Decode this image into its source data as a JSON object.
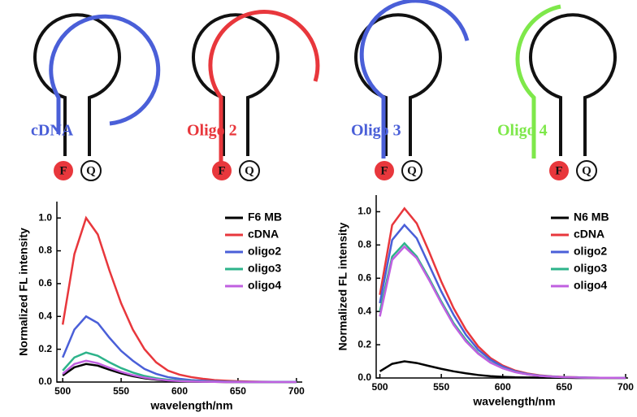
{
  "diagrams": {
    "probes": [
      {
        "label": "cDNA",
        "color": "#4a5fd8"
      },
      {
        "label": "Oligo 2",
        "color": "#e8373c"
      },
      {
        "label": "Oligo 3",
        "color": "#4a5fd8"
      },
      {
        "label": "Oligo 4",
        "color": "#7ee84a"
      }
    ],
    "fluorophore": "F",
    "quencher": "Q"
  },
  "chart_data": [
    {
      "type": "line",
      "xlabel": "wavelength/nm",
      "ylabel": "Normalized FL intensity",
      "x": [
        500,
        510,
        520,
        530,
        540,
        550,
        560,
        570,
        580,
        590,
        600,
        610,
        620,
        630,
        640,
        650,
        660,
        670,
        680,
        690,
        700
      ],
      "xlim": [
        495,
        705
      ],
      "xticks": [
        500,
        550,
        600,
        650,
        700
      ],
      "ylim": [
        0,
        1.1
      ],
      "yticks": [
        {
          "value": 0,
          "label": "0.0"
        },
        {
          "value": 0.2,
          "label": "0.2"
        },
        {
          "value": 0.4,
          "label": "0.4"
        },
        {
          "value": 0.6,
          "label": "0.6"
        },
        {
          "value": 0.8,
          "label": "0.8"
        },
        {
          "value": 1.0,
          "label": "1.0"
        }
      ],
      "series": [
        {
          "name": "F6 MB",
          "color": "#000000",
          "values": [
            0.04,
            0.09,
            0.11,
            0.1,
            0.075,
            0.053,
            0.036,
            0.023,
            0.014,
            0.008,
            0.005,
            0.003,
            0.002,
            0.001,
            0,
            0,
            0,
            0,
            0,
            0,
            0
          ]
        },
        {
          "name": "cDNA",
          "color": "#e8373c",
          "values": [
            0.35,
            0.78,
            1.0,
            0.9,
            0.68,
            0.48,
            0.32,
            0.2,
            0.12,
            0.07,
            0.045,
            0.03,
            0.02,
            0.012,
            0.008,
            0.005,
            0.003,
            0.002,
            0.001,
            0.001,
            0.001
          ]
        },
        {
          "name": "oligo2",
          "color": "#4a5fd8",
          "values": [
            0.15,
            0.32,
            0.4,
            0.36,
            0.27,
            0.19,
            0.13,
            0.08,
            0.05,
            0.03,
            0.02,
            0.012,
            0.008,
            0.005,
            0.003,
            0.002,
            0.001,
            0.001,
            0.001,
            0.001,
            0.001
          ]
        },
        {
          "name": "oligo3",
          "color": "#2db38a",
          "values": [
            0.07,
            0.15,
            0.18,
            0.16,
            0.12,
            0.085,
            0.058,
            0.037,
            0.023,
            0.014,
            0.009,
            0.006,
            0.004,
            0.002,
            0.001,
            0,
            0,
            0,
            0,
            0,
            0
          ]
        },
        {
          "name": "oligo4",
          "color": "#c060e0",
          "values": [
            0.05,
            0.11,
            0.13,
            0.115,
            0.087,
            0.062,
            0.042,
            0.027,
            0.017,
            0.01,
            0.006,
            0.004,
            0.002,
            0.001,
            0,
            0,
            0,
            0,
            0,
            0,
            0
          ]
        }
      ]
    },
    {
      "type": "line",
      "xlabel": "wavelength/nm",
      "ylabel": "Normalized FL intensity",
      "x": [
        500,
        510,
        520,
        530,
        540,
        550,
        560,
        570,
        580,
        590,
        600,
        610,
        620,
        630,
        640,
        650,
        660,
        670,
        680,
        690,
        700
      ],
      "xlim": [
        497,
        702
      ],
      "xticks": [
        500,
        550,
        600,
        650,
        700
      ],
      "ylim": [
        0,
        1.1
      ],
      "yticks": [
        {
          "value": 0,
          "label": "0.0"
        },
        {
          "value": 0.2,
          "label": "0.2"
        },
        {
          "value": 0.4,
          "label": "0.4"
        },
        {
          "value": 0.6,
          "label": "0.6"
        },
        {
          "value": 0.8,
          "label": "0.8"
        },
        {
          "value": 1.0,
          "label": "1.0"
        }
      ],
      "series": [
        {
          "name": "N6 MB",
          "color": "#000000",
          "values": [
            0.04,
            0.085,
            0.1,
            0.09,
            0.072,
            0.055,
            0.04,
            0.028,
            0.018,
            0.011,
            0.007,
            0.004,
            0.003,
            0.002,
            0.001,
            0.001,
            0,
            0,
            0,
            0,
            0
          ]
        },
        {
          "name": "cDNA",
          "color": "#e8373c",
          "values": [
            0.5,
            0.92,
            1.02,
            0.93,
            0.76,
            0.58,
            0.42,
            0.29,
            0.19,
            0.12,
            0.075,
            0.045,
            0.027,
            0.016,
            0.01,
            0.006,
            0.004,
            0.002,
            0.001,
            0.001,
            0
          ]
        },
        {
          "name": "oligo2",
          "color": "#4a5fd8",
          "values": [
            0.45,
            0.83,
            0.92,
            0.84,
            0.68,
            0.52,
            0.38,
            0.26,
            0.17,
            0.11,
            0.068,
            0.04,
            0.024,
            0.014,
            0.009,
            0.005,
            0.004,
            0.002,
            0.001,
            0.001,
            0
          ]
        },
        {
          "name": "oligo3",
          "color": "#2db38a",
          "values": [
            0.4,
            0.73,
            0.81,
            0.73,
            0.6,
            0.46,
            0.33,
            0.23,
            0.15,
            0.095,
            0.059,
            0.036,
            0.021,
            0.013,
            0.008,
            0.005,
            0.003,
            0.002,
            0.001,
            0.001,
            0
          ]
        },
        {
          "name": "oligo4",
          "color": "#c060e0",
          "values": [
            0.37,
            0.71,
            0.79,
            0.72,
            0.59,
            0.45,
            0.32,
            0.22,
            0.146,
            0.092,
            0.058,
            0.035,
            0.021,
            0.012,
            0.008,
            0.005,
            0.003,
            0.002,
            0.001,
            0.001,
            0
          ]
        }
      ]
    }
  ]
}
